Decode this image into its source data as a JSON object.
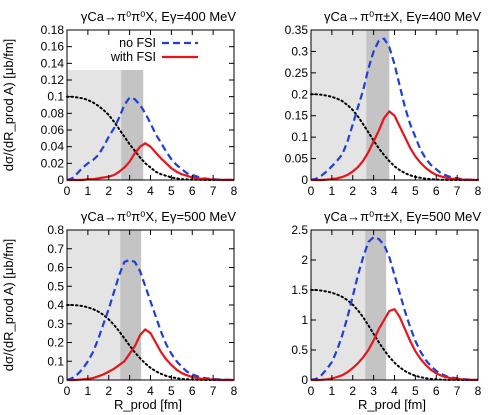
{
  "figure": {
    "ylabel": "dσ/(dR_prod A) [μb/fm]",
    "xlabel": "R_prod [fm]"
  },
  "colors": {
    "no_fsi": "#1f3fd6",
    "with_fsi": "#e8141b",
    "dotted": "#000000",
    "band_light": "#e4e4e4",
    "band_dark": "#c4c4c4"
  },
  "chart_data": [
    {
      "type": "line",
      "title": "γCa→π⁰π⁰X, Eγ=400 MeV",
      "xlim": [
        0,
        8
      ],
      "ylim": [
        0,
        0.18
      ],
      "xticks": [
        "0",
        "1",
        "2",
        "3",
        "4",
        "5",
        "6",
        "7",
        "8"
      ],
      "yticks": [
        "0",
        "0.02",
        "0.04",
        "0.06",
        "0.08",
        "0.1",
        "0.12",
        "0.14",
        "0.16",
        "0.18"
      ],
      "legend": [
        "no FSI",
        "with FSI"
      ],
      "legend_position": "top-center",
      "bands": {
        "light": [
          0,
          3.65
        ],
        "dark": [
          2.6,
          3.65
        ],
        "light_top": 0.132
      },
      "series": [
        {
          "name": "no FSI",
          "x": [
            0,
            0.25,
            0.5,
            0.75,
            1,
            1.25,
            1.5,
            1.75,
            2,
            2.25,
            2.5,
            2.75,
            3,
            3.25,
            3.5,
            3.75,
            4,
            4.25,
            4.5,
            4.75,
            5,
            5.25,
            5.5,
            5.75,
            6,
            6.25,
            6.5,
            6.75,
            7,
            7.25,
            7.5,
            7.75,
            8
          ],
          "y": [
            0,
            0.002,
            0.008,
            0.015,
            0.02,
            0.024,
            0.03,
            0.04,
            0.052,
            0.062,
            0.075,
            0.09,
            0.099,
            0.097,
            0.09,
            0.08,
            0.068,
            0.055,
            0.045,
            0.034,
            0.025,
            0.018,
            0.013,
            0.008,
            0.006,
            0.004,
            0.002,
            0.0015,
            0.001,
            0.0005,
            0.0003,
            0.0002,
            0
          ]
        },
        {
          "name": "with FSI",
          "x": [
            0,
            0.25,
            0.5,
            0.75,
            1,
            1.25,
            1.5,
            1.75,
            2,
            2.25,
            2.5,
            2.75,
            3,
            3.25,
            3.5,
            3.75,
            4,
            4.25,
            4.5,
            4.75,
            5,
            5.25,
            5.5,
            5.75,
            6,
            6.25,
            6.5,
            6.75,
            7,
            7.25,
            7.5,
            7.75,
            8
          ],
          "y": [
            0,
            0,
            0,
            0,
            0.001,
            0.001,
            0.002,
            0.003,
            0.004,
            0.006,
            0.01,
            0.015,
            0.022,
            0.032,
            0.04,
            0.044,
            0.04,
            0.033,
            0.026,
            0.02,
            0.014,
            0.01,
            0.007,
            0.005,
            0.003,
            0.002,
            0.0015,
            0.001,
            0.0005,
            0.0003,
            0.0002,
            0.0001,
            0
          ]
        },
        {
          "x": [
            0,
            0.25,
            0.5,
            0.75,
            1,
            1.25,
            1.5,
            1.75,
            2,
            2.25,
            2.5,
            2.75,
            3,
            3.25,
            3.5,
            3.75,
            4,
            4.25,
            4.5,
            4.75,
            5,
            5.25,
            5.5,
            5.75,
            6,
            6.25,
            6.5,
            6.75,
            7,
            7.25,
            7.5,
            7.75,
            8
          ],
          "y": [
            0.1,
            0.1,
            0.099,
            0.098,
            0.096,
            0.093,
            0.089,
            0.084,
            0.078,
            0.07,
            0.061,
            0.052,
            0.043,
            0.035,
            0.027,
            0.02,
            0.015,
            0.01,
            0.007,
            0.005,
            0.003,
            0.002,
            0.001,
            0.0007,
            0.0004,
            0.0002,
            0.0001,
            0,
            0,
            0,
            0,
            0,
            0
          ]
        }
      ]
    },
    {
      "type": "line",
      "title": "γCa→π⁰π±X, Eγ=400 MeV",
      "xlim": [
        0,
        8
      ],
      "ylim": [
        0,
        0.35
      ],
      "xticks": [
        "0",
        "1",
        "2",
        "3",
        "4",
        "5",
        "6",
        "7",
        "8"
      ],
      "yticks": [
        "0",
        "0.05",
        "0.1",
        "0.15",
        "0.2",
        "0.25",
        "0.3",
        "0.35"
      ],
      "bands": {
        "light": [
          0,
          3.75
        ],
        "dark": [
          2.65,
          3.75
        ],
        "light_top": 0.35
      },
      "series": [
        {
          "name": "no FSI",
          "x": [
            0,
            0.25,
            0.5,
            0.75,
            1,
            1.25,
            1.5,
            1.75,
            2,
            2.25,
            2.5,
            2.75,
            3,
            3.25,
            3.5,
            3.75,
            4,
            4.25,
            4.5,
            4.75,
            5,
            5.25,
            5.5,
            5.75,
            6,
            6.25,
            6.5,
            6.75,
            7,
            7.25,
            7.5,
            7.75,
            8
          ],
          "y": [
            0,
            0.003,
            0.01,
            0.02,
            0.032,
            0.045,
            0.06,
            0.09,
            0.13,
            0.17,
            0.21,
            0.26,
            0.3,
            0.325,
            0.33,
            0.31,
            0.27,
            0.22,
            0.17,
            0.13,
            0.1,
            0.07,
            0.05,
            0.035,
            0.025,
            0.015,
            0.01,
            0.006,
            0.004,
            0.002,
            0.001,
            0.0005,
            0
          ]
        },
        {
          "name": "with FSI",
          "x": [
            0,
            0.25,
            0.5,
            0.75,
            1,
            1.25,
            1.5,
            1.75,
            2,
            2.25,
            2.5,
            2.75,
            3,
            3.25,
            3.5,
            3.75,
            4,
            4.25,
            4.5,
            4.75,
            5,
            5.25,
            5.5,
            5.75,
            6,
            6.25,
            6.5,
            6.75,
            7,
            7.25,
            7.5,
            7.75,
            8
          ],
          "y": [
            0,
            0,
            0,
            0.001,
            0.002,
            0.004,
            0.007,
            0.012,
            0.02,
            0.03,
            0.045,
            0.065,
            0.09,
            0.115,
            0.145,
            0.16,
            0.15,
            0.125,
            0.1,
            0.075,
            0.055,
            0.04,
            0.028,
            0.019,
            0.012,
            0.008,
            0.005,
            0.003,
            0.002,
            0.001,
            0.0005,
            0.0002,
            0
          ]
        },
        {
          "x": [
            0,
            0.25,
            0.5,
            0.75,
            1,
            1.25,
            1.5,
            1.75,
            2,
            2.25,
            2.5,
            2.75,
            3,
            3.25,
            3.5,
            3.75,
            4,
            4.25,
            4.5,
            4.75,
            5,
            5.25,
            5.5,
            5.75,
            6,
            6.25,
            6.5,
            6.75,
            7,
            7.25,
            7.5,
            7.75,
            8
          ],
          "y": [
            0.2,
            0.2,
            0.199,
            0.197,
            0.194,
            0.19,
            0.184,
            0.175,
            0.163,
            0.148,
            0.13,
            0.111,
            0.092,
            0.074,
            0.058,
            0.044,
            0.032,
            0.023,
            0.016,
            0.011,
            0.007,
            0.005,
            0.003,
            0.002,
            0.001,
            0.0006,
            0.0003,
            0.0001,
            0,
            0,
            0,
            0,
            0
          ]
        }
      ]
    },
    {
      "type": "line",
      "title": "γCa→π⁰π⁰X, Eγ=500 MeV",
      "xlim": [
        0,
        8
      ],
      "ylim": [
        0,
        0.8
      ],
      "xticks": [
        "0",
        "1",
        "2",
        "3",
        "4",
        "5",
        "6",
        "7",
        "8"
      ],
      "yticks": [
        "0",
        "0.1",
        "0.2",
        "0.3",
        "0.4",
        "0.5",
        "0.6",
        "0.7",
        "0.8"
      ],
      "bands": {
        "light": [
          0,
          3.55
        ],
        "dark": [
          2.55,
          3.55
        ],
        "light_top": 0.8
      },
      "series": [
        {
          "name": "no FSI",
          "x": [
            0,
            0.25,
            0.5,
            0.75,
            1,
            1.25,
            1.5,
            1.75,
            2,
            2.25,
            2.5,
            2.75,
            3,
            3.25,
            3.5,
            3.75,
            4,
            4.25,
            4.5,
            4.75,
            5,
            5.25,
            5.5,
            5.75,
            6,
            6.25,
            6.5,
            6.75,
            7,
            7.25,
            7.5,
            7.75,
            8
          ],
          "y": [
            0,
            0.01,
            0.03,
            0.06,
            0.1,
            0.15,
            0.22,
            0.3,
            0.38,
            0.47,
            0.56,
            0.63,
            0.64,
            0.63,
            0.58,
            0.5,
            0.42,
            0.34,
            0.26,
            0.19,
            0.14,
            0.1,
            0.07,
            0.045,
            0.03,
            0.02,
            0.012,
            0.008,
            0.005,
            0.003,
            0.002,
            0.001,
            0
          ]
        },
        {
          "name": "with FSI",
          "x": [
            0,
            0.25,
            0.5,
            0.75,
            1,
            1.25,
            1.5,
            1.75,
            2,
            2.25,
            2.5,
            2.75,
            3,
            3.25,
            3.5,
            3.75,
            4,
            4.25,
            4.5,
            4.75,
            5,
            5.25,
            5.5,
            5.75,
            6,
            6.25,
            6.5,
            6.75,
            7,
            7.25,
            7.5,
            7.75,
            8
          ],
          "y": [
            0,
            0,
            0.001,
            0.003,
            0.006,
            0.01,
            0.02,
            0.03,
            0.045,
            0.06,
            0.08,
            0.1,
            0.14,
            0.18,
            0.24,
            0.27,
            0.25,
            0.2,
            0.15,
            0.11,
            0.08,
            0.055,
            0.037,
            0.025,
            0.016,
            0.01,
            0.006,
            0.004,
            0.002,
            0.001,
            0.0005,
            0.0002,
            0
          ]
        },
        {
          "x": [
            0,
            0.25,
            0.5,
            0.75,
            1,
            1.25,
            1.5,
            1.75,
            2,
            2.25,
            2.5,
            2.75,
            3,
            3.25,
            3.5,
            3.75,
            4,
            4.25,
            4.5,
            4.75,
            5,
            5.25,
            5.5,
            5.75,
            6,
            6.25,
            6.5,
            6.75,
            7,
            7.25,
            7.5,
            7.75,
            8
          ],
          "y": [
            0.4,
            0.4,
            0.398,
            0.394,
            0.388,
            0.378,
            0.365,
            0.347,
            0.323,
            0.294,
            0.26,
            0.222,
            0.184,
            0.148,
            0.116,
            0.088,
            0.065,
            0.047,
            0.033,
            0.022,
            0.015,
            0.01,
            0.006,
            0.004,
            0.002,
            0.001,
            0.0005,
            0.0002,
            0,
            0,
            0,
            0,
            0
          ]
        }
      ]
    },
    {
      "type": "line",
      "title": "γCa→π⁰π±X, Eγ=500 MeV",
      "xlim": [
        0,
        8
      ],
      "ylim": [
        0,
        2.5
      ],
      "xticks": [
        "0",
        "1",
        "2",
        "3",
        "4",
        "5",
        "6",
        "7",
        "8"
      ],
      "yticks": [
        "0",
        "0.5",
        "1",
        "1.5",
        "2",
        "2.5"
      ],
      "bands": {
        "light": [
          0,
          3.6
        ],
        "dark": [
          2.6,
          3.6
        ],
        "light_top": 2.5
      },
      "series": [
        {
          "name": "no FSI",
          "x": [
            0,
            0.25,
            0.5,
            0.75,
            1,
            1.25,
            1.5,
            1.75,
            2,
            2.25,
            2.5,
            2.75,
            3,
            3.25,
            3.5,
            3.75,
            4,
            4.25,
            4.5,
            4.75,
            5,
            5.25,
            5.5,
            5.75,
            6,
            6.25,
            6.5,
            6.75,
            7,
            7.25,
            7.5,
            7.75,
            8
          ],
          "y": [
            0,
            0.02,
            0.08,
            0.18,
            0.3,
            0.5,
            0.75,
            1.05,
            1.4,
            1.75,
            2.05,
            2.3,
            2.38,
            2.35,
            2.25,
            2.05,
            1.75,
            1.45,
            1.15,
            0.88,
            0.65,
            0.47,
            0.33,
            0.23,
            0.15,
            0.1,
            0.06,
            0.04,
            0.025,
            0.015,
            0.008,
            0.004,
            0
          ]
        },
        {
          "name": "with FSI",
          "x": [
            0,
            0.25,
            0.5,
            0.75,
            1,
            1.25,
            1.5,
            1.75,
            2,
            2.25,
            2.5,
            2.75,
            3,
            3.25,
            3.5,
            3.75,
            4,
            4.25,
            4.5,
            4.75,
            5,
            5.25,
            5.5,
            5.75,
            6,
            6.25,
            6.5,
            6.75,
            7,
            7.25,
            7.5,
            7.75,
            8
          ],
          "y": [
            0,
            0,
            0.003,
            0.01,
            0.025,
            0.05,
            0.08,
            0.13,
            0.2,
            0.28,
            0.38,
            0.5,
            0.66,
            0.85,
            1.0,
            1.15,
            1.18,
            1.05,
            0.85,
            0.65,
            0.48,
            0.35,
            0.25,
            0.17,
            0.11,
            0.07,
            0.045,
            0.028,
            0.016,
            0.009,
            0.005,
            0.002,
            0
          ]
        },
        {
          "x": [
            0,
            0.25,
            0.5,
            0.75,
            1,
            1.25,
            1.5,
            1.75,
            2,
            2.25,
            2.5,
            2.75,
            3,
            3.25,
            3.5,
            3.75,
            4,
            4.25,
            4.5,
            4.75,
            5,
            5.25,
            5.5,
            5.75,
            6,
            6.25,
            6.5,
            6.75,
            7,
            7.25,
            7.5,
            7.75,
            8
          ],
          "y": [
            1.5,
            1.5,
            1.49,
            1.475,
            1.455,
            1.425,
            1.385,
            1.33,
            1.255,
            1.16,
            1.045,
            0.91,
            0.77,
            0.63,
            0.5,
            0.385,
            0.29,
            0.21,
            0.15,
            0.105,
            0.07,
            0.047,
            0.03,
            0.019,
            0.012,
            0.007,
            0.004,
            0.002,
            0.001,
            0,
            0,
            0,
            0
          ]
        }
      ]
    }
  ]
}
